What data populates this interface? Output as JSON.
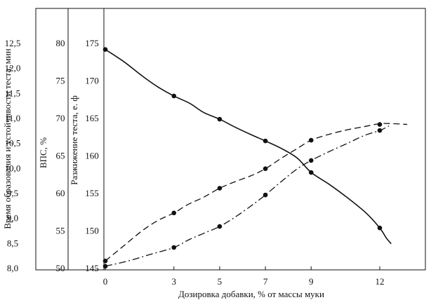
{
  "chart_data": {
    "type": "line",
    "xlabel": "Дозировка добавки, % от массы муки",
    "x_ticks": [
      0,
      3,
      5,
      7,
      9,
      12
    ],
    "xlim": [
      -0.4,
      13.8
    ],
    "axes": [
      {
        "id": "time",
        "label": "Время образования и устойчивости теста, мин",
        "ticks": [
          "8,0",
          "8,5",
          "9,0",
          "9,5",
          "10,0",
          "10,5",
          "11,0",
          "11,5",
          "12,0",
          "12,5"
        ],
        "ylim": [
          8.0,
          12.5
        ]
      },
      {
        "id": "vps",
        "label": "ВПС, %",
        "ticks": [
          "50",
          "55",
          "60",
          "65",
          "70",
          "75",
          "80"
        ],
        "ylim": [
          50,
          80
        ]
      },
      {
        "id": "razh",
        "label": "Разжижение теста, е. ф",
        "ticks": [
          "145",
          "150",
          "155",
          "160",
          "165",
          "170",
          "175"
        ],
        "ylim": [
          145,
          175
        ]
      }
    ],
    "series": [
      {
        "axis": "razh",
        "style": "solid",
        "points": [
          [
            0,
            174.2
          ],
          [
            3,
            168.0
          ],
          [
            5,
            164.9
          ],
          [
            7,
            162.0
          ],
          [
            9,
            157.8
          ],
          [
            12,
            150.4
          ]
        ],
        "curve": [
          [
            0,
            174.2
          ],
          [
            0.8,
            172.6
          ],
          [
            1.6,
            170.7
          ],
          [
            2.3,
            169.2
          ],
          [
            3,
            168.0
          ],
          [
            3.7,
            167.0
          ],
          [
            4.3,
            165.8
          ],
          [
            5,
            164.9
          ],
          [
            5.7,
            163.8
          ],
          [
            6.4,
            162.8
          ],
          [
            7,
            162.0
          ],
          [
            7.7,
            161.0
          ],
          [
            8.4,
            159.7
          ],
          [
            9,
            157.8
          ],
          [
            9.8,
            156.2
          ],
          [
            10.6,
            154.4
          ],
          [
            11.4,
            152.4
          ],
          [
            12,
            150.4
          ],
          [
            12.3,
            149.0
          ],
          [
            12.5,
            148.3
          ]
        ]
      },
      {
        "axis": "razh",
        "style": "dashed",
        "points": [
          [
            0,
            146.0
          ],
          [
            3,
            152.4
          ],
          [
            5,
            155.7
          ],
          [
            7,
            158.3
          ],
          [
            9,
            162.1
          ],
          [
            12,
            164.2
          ]
        ],
        "curve": [
          [
            0,
            146.0
          ],
          [
            0.8,
            148.0
          ],
          [
            1.6,
            150.0
          ],
          [
            2.3,
            151.4
          ],
          [
            3,
            152.4
          ],
          [
            3.6,
            153.5
          ],
          [
            4.3,
            154.5
          ],
          [
            5,
            155.7
          ],
          [
            5.7,
            156.6
          ],
          [
            6.4,
            157.4
          ],
          [
            7,
            158.3
          ],
          [
            7.7,
            159.7
          ],
          [
            8.4,
            161.0
          ],
          [
            9,
            162.1
          ],
          [
            9.8,
            162.9
          ],
          [
            10.6,
            163.5
          ],
          [
            11.3,
            163.9
          ],
          [
            12,
            164.3
          ],
          [
            12.6,
            164.3
          ],
          [
            13.2,
            164.2
          ]
        ]
      },
      {
        "axis": "razh",
        "style": "dash-dot",
        "points": [
          [
            0,
            145.3
          ],
          [
            3,
            147.8
          ],
          [
            5,
            150.6
          ],
          [
            7,
            154.8
          ],
          [
            9,
            159.4
          ],
          [
            12,
            163.4
          ]
        ],
        "curve": [
          [
            0,
            145.3
          ],
          [
            1,
            146.0
          ],
          [
            2,
            146.9
          ],
          [
            3,
            147.8
          ],
          [
            3.7,
            148.9
          ],
          [
            4.4,
            149.8
          ],
          [
            5,
            150.6
          ],
          [
            5.7,
            151.9
          ],
          [
            6.4,
            153.4
          ],
          [
            7,
            154.8
          ],
          [
            7.7,
            156.6
          ],
          [
            8.4,
            158.3
          ],
          [
            9,
            159.4
          ],
          [
            9.8,
            160.6
          ],
          [
            10.6,
            161.7
          ],
          [
            11.3,
            162.7
          ],
          [
            12,
            163.4
          ],
          [
            12.4,
            164.0
          ]
        ]
      }
    ]
  }
}
